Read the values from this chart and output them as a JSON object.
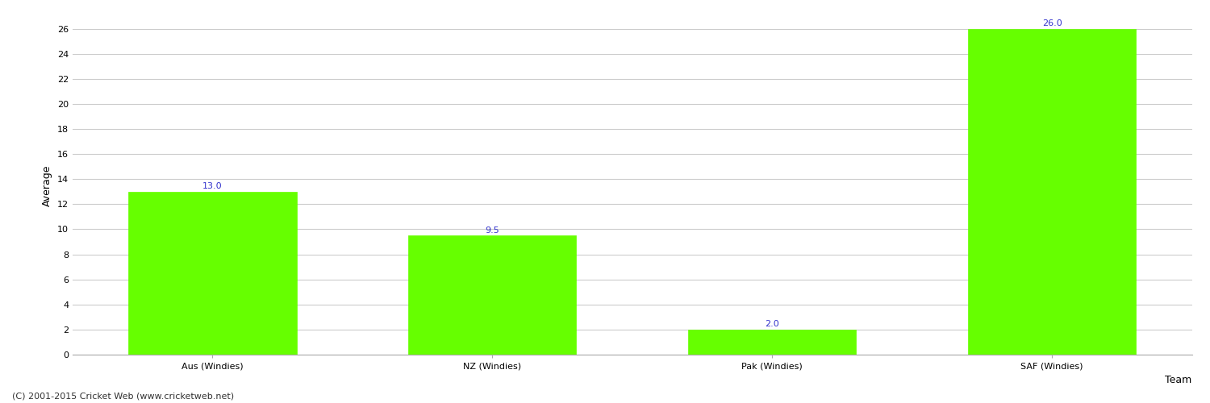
{
  "categories": [
    "Aus (Windies)",
    "NZ (Windies)",
    "Pak (Windies)",
    "SAF (Windies)"
  ],
  "values": [
    13.0,
    9.5,
    2.0,
    26.0
  ],
  "bar_color": "#66ff00",
  "bar_edge_color": "#66ff00",
  "value_color": "#3333cc",
  "xlabel": "Team",
  "ylabel": "Average",
  "ylim": [
    0,
    27
  ],
  "yticks": [
    0,
    2,
    4,
    6,
    8,
    10,
    12,
    14,
    16,
    18,
    20,
    22,
    24,
    26
  ],
  "grid_color": "#cccccc",
  "background_color": "#ffffff",
  "footer": "(C) 2001-2015 Cricket Web (www.cricketweb.net)",
  "label_fontsize": 9,
  "tick_fontsize": 8,
  "value_fontsize": 8,
  "footer_fontsize": 8,
  "bar_width": 0.6,
  "xlim_left": -0.5,
  "xlim_right": 3.5
}
